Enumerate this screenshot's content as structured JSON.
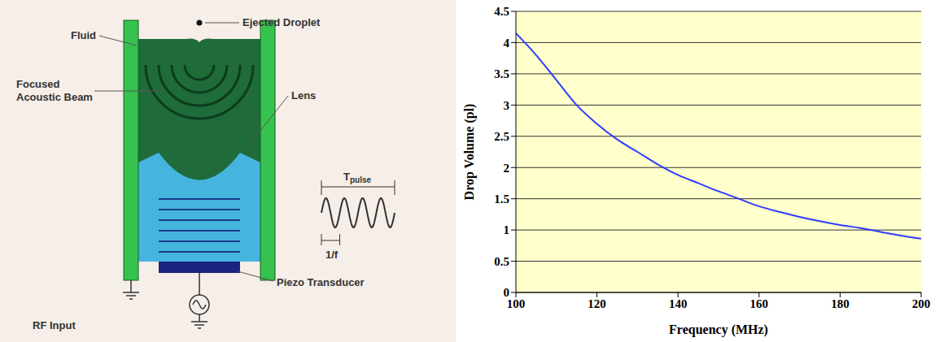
{
  "diagram": {
    "droplet_label": "Ejected Droplet",
    "fluid_label": "Fluid",
    "beam_label": "Focused Acoustic Beam",
    "lens_label": "Lens",
    "pulse_label": "T",
    "pulse_subscript": "pulse",
    "period_label": "1/f",
    "transducer_label": "Piezo Transducer",
    "input_label": "RF Input"
  },
  "chart_data": {
    "type": "line",
    "x_label": "Frequency (MHz)",
    "y_label": "Drop Volume (pl)",
    "x": [
      100,
      105,
      110,
      115,
      120,
      125,
      130,
      135,
      140,
      145,
      150,
      155,
      160,
      165,
      170,
      175,
      180,
      185,
      190,
      195,
      200
    ],
    "values": [
      4.15,
      3.8,
      3.4,
      3.0,
      2.7,
      2.45,
      2.25,
      2.05,
      1.88,
      1.75,
      1.62,
      1.5,
      1.38,
      1.29,
      1.21,
      1.14,
      1.08,
      1.03,
      0.97,
      0.91,
      0.86
    ],
    "color": "#2e3bff",
    "xlim": [
      100,
      200
    ],
    "xticks": [
      100,
      120,
      140,
      160,
      180,
      200
    ],
    "ylim": [
      0,
      4.5
    ],
    "yticks": [
      0,
      0.5,
      1,
      1.5,
      2,
      2.5,
      3,
      3.5,
      4,
      4.5
    ],
    "grid": true
  }
}
